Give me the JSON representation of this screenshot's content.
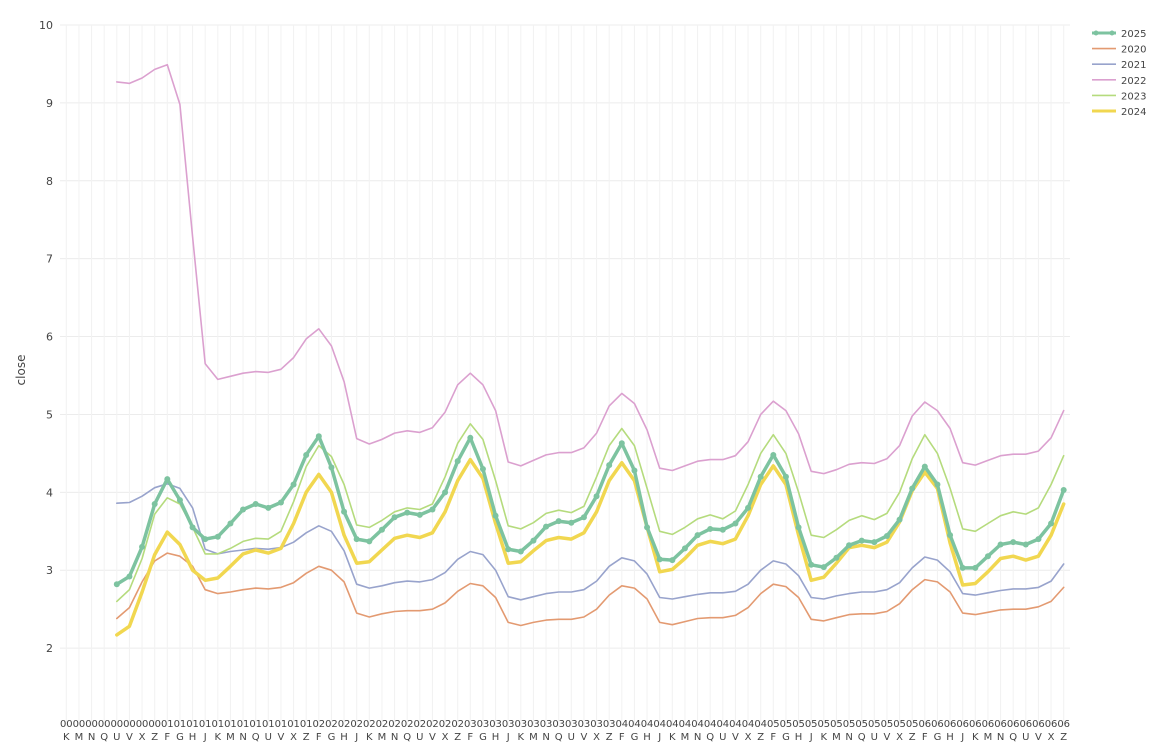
{
  "chart_data": {
    "type": "line",
    "title": "",
    "xlabel": "",
    "ylabel": "close",
    "ylim": [
      1,
      10
    ],
    "yticks": [
      2,
      3,
      4,
      5,
      6,
      7,
      8,
      9,
      10
    ],
    "grid": true,
    "legend_placement": "top-right",
    "x": [
      "00K",
      "00M",
      "00N",
      "00Q",
      "00U",
      "00V",
      "00X",
      "00Z",
      "01F",
      "01G",
      "01H",
      "01J",
      "01K",
      "01M",
      "01N",
      "01Q",
      "01U",
      "01V",
      "01X",
      "01Z",
      "02F",
      "02G",
      "02H",
      "02J",
      "02K",
      "02M",
      "02N",
      "02Q",
      "02U",
      "02V",
      "02X",
      "02Z",
      "03F",
      "03G",
      "03H",
      "03J",
      "03K",
      "03M",
      "03N",
      "03Q",
      "03U",
      "03V",
      "03X",
      "03Z",
      "04F",
      "04G",
      "04H",
      "04J",
      "04K",
      "04M",
      "04N",
      "04Q",
      "04U",
      "04V",
      "04X",
      "04Z",
      "05F",
      "05G",
      "05H",
      "05J",
      "05K",
      "05M",
      "05N",
      "05Q",
      "05U",
      "05V",
      "05X",
      "05Z",
      "06F",
      "06G",
      "06H",
      "06J",
      "06K",
      "06M",
      "06N",
      "06Q",
      "06U",
      "06V",
      "06X",
      "06Z"
    ],
    "x_tick_top": [
      "00",
      "00",
      "00",
      "00",
      "00",
      "00",
      "00",
      "00",
      "01",
      "01",
      "01",
      "01",
      "01",
      "01",
      "01",
      "01",
      "01",
      "01",
      "01",
      "01",
      "02",
      "02",
      "02",
      "02",
      "02",
      "02",
      "02",
      "02",
      "02",
      "02",
      "02",
      "02",
      "03",
      "03",
      "03",
      "03",
      "03",
      "03",
      "03",
      "03",
      "03",
      "03",
      "03",
      "03",
      "04",
      "04",
      "04",
      "04",
      "04",
      "04",
      "04",
      "04",
      "04",
      "04",
      "04",
      "04",
      "05",
      "05",
      "05",
      "05",
      "05",
      "05",
      "05",
      "05",
      "05",
      "05",
      "05",
      "05",
      "06",
      "06",
      "06",
      "06",
      "06",
      "06",
      "06",
      "06",
      "06",
      "06",
      "06",
      "06"
    ],
    "x_tick_bottom": [
      "K",
      "M",
      "N",
      "Q",
      "U",
      "V",
      "X",
      "Z",
      "F",
      "G",
      "H",
      "J",
      "K",
      "M",
      "N",
      "Q",
      "U",
      "V",
      "X",
      "Z",
      "F",
      "G",
      "H",
      "J",
      "K",
      "M",
      "N",
      "Q",
      "U",
      "V",
      "X",
      "Z",
      "F",
      "G",
      "H",
      "J",
      "K",
      "M",
      "N",
      "Q",
      "U",
      "V",
      "X",
      "Z",
      "F",
      "G",
      "H",
      "J",
      "K",
      "M",
      "N",
      "Q",
      "U",
      "V",
      "X",
      "Z",
      "F",
      "G",
      "H",
      "J",
      "K",
      "M",
      "N",
      "Q",
      "U",
      "V",
      "X",
      "Z",
      "F",
      "G",
      "H",
      "J",
      "K",
      "M",
      "N",
      "Q",
      "U",
      "V",
      "X",
      "Z"
    ],
    "series": [
      {
        "name": "2025",
        "color": "#7dc3a0",
        "markers": true,
        "values": [
          null,
          null,
          null,
          null,
          2.82,
          2.92,
          3.3,
          3.85,
          4.17,
          3.9,
          3.55,
          3.4,
          3.43,
          3.6,
          3.78,
          3.85,
          3.8,
          3.87,
          4.1,
          4.48,
          4.72,
          4.32,
          3.75,
          3.4,
          3.37,
          3.52,
          3.68,
          3.74,
          3.71,
          3.78,
          4.0,
          4.4,
          4.7,
          4.3,
          3.7,
          3.27,
          3.24,
          3.38,
          3.56,
          3.63,
          3.61,
          3.68,
          3.95,
          4.35,
          4.63,
          4.28,
          3.55,
          3.14,
          3.13,
          3.28,
          3.45,
          3.53,
          3.52,
          3.6,
          3.8,
          4.2,
          4.48,
          4.2,
          3.55,
          3.07,
          3.04,
          3.16,
          3.32,
          3.38,
          3.36,
          3.44,
          3.65,
          4.05,
          4.33,
          4.1,
          3.45,
          3.03,
          3.03,
          3.18,
          3.33,
          3.36,
          3.33,
          3.4,
          3.6,
          4.03
        ]
      },
      {
        "name": "2020",
        "color": "#e39a71",
        "markers": false,
        "values": [
          null,
          null,
          null,
          null,
          2.38,
          2.52,
          2.85,
          3.12,
          3.22,
          3.18,
          3.05,
          2.75,
          2.7,
          2.72,
          2.75,
          2.77,
          2.76,
          2.78,
          2.84,
          2.96,
          3.05,
          3.0,
          2.85,
          2.45,
          2.4,
          2.44,
          2.47,
          2.48,
          2.48,
          2.5,
          2.58,
          2.73,
          2.83,
          2.8,
          2.65,
          2.33,
          2.29,
          2.33,
          2.36,
          2.37,
          2.37,
          2.4,
          2.5,
          2.68,
          2.8,
          2.77,
          2.63,
          2.33,
          2.3,
          2.34,
          2.38,
          2.39,
          2.39,
          2.42,
          2.52,
          2.7,
          2.82,
          2.79,
          2.65,
          2.37,
          2.35,
          2.39,
          2.43,
          2.44,
          2.44,
          2.47,
          2.57,
          2.75,
          2.88,
          2.85,
          2.72,
          2.45,
          2.43,
          2.46,
          2.49,
          2.5,
          2.5,
          2.53,
          2.6,
          2.78
        ]
      },
      {
        "name": "2021",
        "color": "#98a3cc",
        "markers": false,
        "values": [
          null,
          null,
          null,
          null,
          3.86,
          3.87,
          3.95,
          4.06,
          4.11,
          4.05,
          3.8,
          3.27,
          3.21,
          3.24,
          3.26,
          3.28,
          3.27,
          3.29,
          3.36,
          3.48,
          3.57,
          3.5,
          3.25,
          2.82,
          2.77,
          2.8,
          2.84,
          2.86,
          2.85,
          2.88,
          2.97,
          3.14,
          3.24,
          3.2,
          3.0,
          2.66,
          2.62,
          2.66,
          2.7,
          2.72,
          2.72,
          2.75,
          2.86,
          3.05,
          3.16,
          3.12,
          2.95,
          2.65,
          2.63,
          2.66,
          2.69,
          2.71,
          2.71,
          2.73,
          2.82,
          3.0,
          3.12,
          3.08,
          2.93,
          2.65,
          2.63,
          2.67,
          2.7,
          2.72,
          2.72,
          2.75,
          2.84,
          3.03,
          3.17,
          3.13,
          2.98,
          2.7,
          2.68,
          2.71,
          2.74,
          2.76,
          2.76,
          2.78,
          2.86,
          3.08
        ]
      },
      {
        "name": "2022",
        "color": "#dba0cf",
        "markers": false,
        "values": [
          null,
          null,
          null,
          null,
          9.27,
          9.25,
          9.32,
          9.43,
          9.49,
          8.98,
          7.28,
          5.65,
          5.45,
          5.49,
          5.53,
          5.55,
          5.54,
          5.58,
          5.73,
          5.97,
          6.1,
          5.88,
          5.42,
          4.69,
          4.62,
          4.68,
          4.76,
          4.79,
          4.77,
          4.83,
          5.03,
          5.38,
          5.53,
          5.38,
          5.05,
          4.39,
          4.34,
          4.41,
          4.48,
          4.51,
          4.51,
          4.57,
          4.76,
          5.11,
          5.27,
          5.14,
          4.8,
          4.31,
          4.28,
          4.34,
          4.4,
          4.42,
          4.42,
          4.47,
          4.65,
          5.0,
          5.17,
          5.05,
          4.75,
          4.27,
          4.24,
          4.29,
          4.36,
          4.38,
          4.37,
          4.43,
          4.6,
          4.98,
          5.16,
          5.05,
          4.82,
          4.38,
          4.35,
          4.41,
          4.47,
          4.49,
          4.49,
          4.53,
          4.7,
          5.05
        ]
      },
      {
        "name": "2023",
        "color": "#b5db7d",
        "markers": false,
        "values": [
          null,
          null,
          null,
          null,
          2.6,
          2.75,
          3.15,
          3.72,
          3.93,
          3.85,
          3.55,
          3.21,
          3.21,
          3.28,
          3.37,
          3.41,
          3.4,
          3.5,
          3.88,
          4.33,
          4.6,
          4.46,
          4.1,
          3.58,
          3.55,
          3.64,
          3.75,
          3.8,
          3.78,
          3.85,
          4.2,
          4.63,
          4.88,
          4.68,
          4.15,
          3.57,
          3.53,
          3.61,
          3.73,
          3.77,
          3.74,
          3.82,
          4.2,
          4.6,
          4.82,
          4.6,
          4.05,
          3.5,
          3.46,
          3.55,
          3.66,
          3.71,
          3.66,
          3.76,
          4.1,
          4.5,
          4.74,
          4.5,
          4.0,
          3.45,
          3.42,
          3.52,
          3.64,
          3.7,
          3.65,
          3.73,
          4.0,
          4.43,
          4.74,
          4.5,
          4.05,
          3.53,
          3.5,
          3.6,
          3.7,
          3.75,
          3.72,
          3.8,
          4.1,
          4.47
        ]
      },
      {
        "name": "2024",
        "color": "#f1d750",
        "markers": false,
        "thick": true,
        "values": [
          null,
          null,
          null,
          null,
          2.17,
          2.28,
          2.72,
          3.2,
          3.49,
          3.33,
          3.0,
          2.87,
          2.9,
          3.05,
          3.21,
          3.26,
          3.22,
          3.28,
          3.6,
          4.0,
          4.23,
          4.0,
          3.45,
          3.09,
          3.11,
          3.26,
          3.41,
          3.45,
          3.42,
          3.48,
          3.75,
          4.15,
          4.42,
          4.18,
          3.6,
          3.09,
          3.11,
          3.25,
          3.38,
          3.42,
          3.4,
          3.48,
          3.75,
          4.15,
          4.38,
          4.15,
          3.55,
          2.98,
          3.01,
          3.15,
          3.32,
          3.37,
          3.34,
          3.4,
          3.7,
          4.1,
          4.34,
          4.1,
          3.45,
          2.87,
          2.91,
          3.09,
          3.29,
          3.32,
          3.29,
          3.36,
          3.62,
          4.02,
          4.26,
          4.05,
          3.35,
          2.81,
          2.83,
          2.98,
          3.15,
          3.18,
          3.13,
          3.18,
          3.45,
          3.85
        ]
      }
    ]
  }
}
